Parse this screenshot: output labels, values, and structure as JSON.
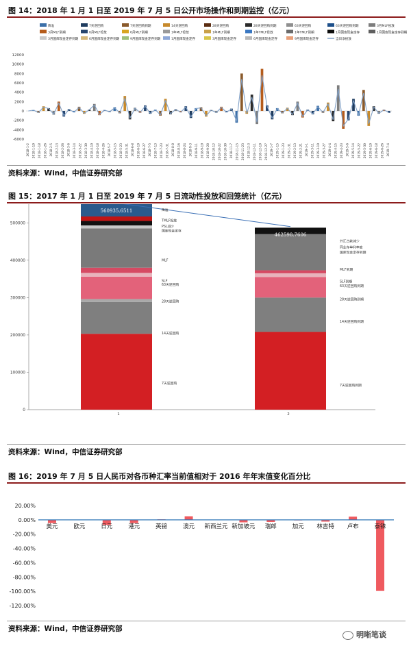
{
  "fig14": {
    "title": "图 14：2018 年 1 月 1 日至 2019 年 7 月 5 日公开市场操作和到期监控（亿元）",
    "source": "资料来源：Wind，中信证券研究部",
    "chart_data": {
      "type": "line",
      "legend_position": "top",
      "legend": [
        {
          "name": "降准",
          "color": "#3b6fa8"
        },
        {
          "name": "7天逆回购",
          "color": "#1f3c5f"
        },
        {
          "name": "7天逆回购到期",
          "color": "#8a5a2b"
        },
        {
          "name": "14天逆回购",
          "color": "#c78a2c"
        },
        {
          "name": "28天逆回购",
          "color": "#5b2c11"
        },
        {
          "name": "28天逆回购到期",
          "color": "#2a2a2a"
        },
        {
          "name": "63天逆回购",
          "color": "#8f8f8f"
        },
        {
          "name": "63天逆回购到期",
          "color": "#1d4f8a"
        },
        {
          "name": "3月MLF投放",
          "color": "#7d7d7d"
        },
        {
          "name": "3月MLF到期",
          "color": "#b55c1c"
        },
        {
          "name": "6月MLF投放",
          "color": "#26456e"
        },
        {
          "name": "6月MLF到期",
          "color": "#d9a520"
        },
        {
          "name": "1年MLF投放",
          "color": "#9a9a9a"
        },
        {
          "name": "1年MLF到期",
          "color": "#c9a14a"
        },
        {
          "name": "1年TMLF投放",
          "color": "#3a78c2"
        },
        {
          "name": "1年TMLF到期",
          "color": "#6b6b6b"
        },
        {
          "name": "1月国库现金定存",
          "color": "#0d0d0d"
        },
        {
          "name": "1月国库现金定存到期",
          "color": "#5f5f5f"
        },
        {
          "name": "3月国库现金定存到期",
          "color": "#c9c9c9"
        },
        {
          "name": "6月国库现金定存到期",
          "color": "#d5b77a"
        },
        {
          "name": "9月国库现金定存到期",
          "color": "#9fbf7a"
        },
        {
          "name": "1月国库现金定存",
          "color": "#8ea8d8"
        },
        {
          "name": "3月国库现金定存",
          "color": "#d7c64a"
        },
        {
          "name": "6月国库现金定存",
          "color": "#b8b8b8"
        },
        {
          "name": "9月国库现金定存",
          "color": "#e8a07a"
        },
        {
          "name": "当日净投放",
          "color": "#7f9fc6",
          "style": "line"
        }
      ],
      "ylim": [
        -6000,
        12000
      ],
      "yticks": [
        "12000",
        "10000",
        "8000",
        "6000",
        "4000",
        "2000",
        "0",
        "-2000",
        "-4000",
        "-6000"
      ],
      "xticks": [
        "2018-1-2",
        "2018-1-10",
        "2018-1-18",
        "2018-1-26",
        "2018-2-5",
        "2018-2-13",
        "2018-2-26",
        "2018-3-6",
        "2018-3-14",
        "2018-3-22",
        "2018-3-30",
        "2018-4-10",
        "2018-4-18",
        "2018-4-26",
        "2018-5-7",
        "2018-5-15",
        "2018-5-23",
        "2018-5-31",
        "2018-6-8",
        "2018-6-19",
        "2018-6-27",
        "2018-7-5",
        "2018-7-13",
        "2018-7-23",
        "2018-7-31",
        "2018-8-8",
        "2018-8-16",
        "2018-8-24",
        "2018-9-3",
        "2018-9-11",
        "2018-9-19",
        "2018-9-28",
        "2018-10-12",
        "2018-10-22",
        "2018-10-30",
        "2018-11-7",
        "2018-11-15",
        "2018-11-23",
        "2018-12-3",
        "2018-12-11",
        "2018-12-19",
        "2018-12-27",
        "2019-1-7",
        "2019-1-15",
        "2019-1-23",
        "2019-1-31",
        "2019-2-13",
        "2019-2-21",
        "2019-3-1",
        "2019-3-11",
        "2019-3-19",
        "2019-3-27",
        "2019-4-4",
        "2019-4-15",
        "2019-4-23",
        "2019-5-6",
        "2019-5-14",
        "2019-5-22",
        "2019-5-30",
        "2019-6-10",
        "2019-6-18",
        "2019-6-26",
        "2019-7-4"
      ],
      "net_injection": [
        0,
        200,
        -400,
        1000,
        600,
        -800,
        2000,
        -1200,
        400,
        -300,
        900,
        -600,
        300,
        1500,
        -900,
        200,
        -200,
        800,
        -500,
        3200,
        -1800,
        700,
        -400,
        1200,
        -600,
        300,
        -1000,
        2600,
        -700,
        400,
        -300,
        1000,
        -1500,
        600,
        800,
        -1200,
        200,
        -400,
        900,
        -300,
        500,
        -2500,
        8000,
        -600,
        3500,
        -2800,
        9000,
        1200,
        -1800,
        600,
        -500,
        700,
        -900,
        2000,
        -1400,
        300,
        -700,
        1100,
        -400,
        1800,
        -2200,
        5500,
        -3800,
        -2000,
        2600,
        -1000,
        4500,
        -3200,
        1000,
        -600,
        300,
        -400
      ]
    }
  },
  "fig15": {
    "title": "图 15：2017 年 1 月 1 日至 2019 年 7 月 5 日流动性投放和回笼统计（亿元）",
    "source": "资料来源：Wind，中信证券研究部",
    "chart_data": {
      "type": "bar",
      "stacked": true,
      "categories": [
        "1",
        "2"
      ],
      "ylim": [
        0,
        550000
      ],
      "yticks": [
        "500000",
        "400000",
        "300000",
        "200000",
        "100000",
        "0"
      ],
      "totals": [
        "560935.6511",
        "462598.7606"
      ],
      "bars": [
        {
          "category": "1",
          "segments": [
            {
              "value": 203000,
              "color": "#d31f23",
              "label": "7天逆回购"
            },
            {
              "value": 85000,
              "color": "#7f7f7f",
              "label": "14天逆回购"
            },
            {
              "value": 8000,
              "color": "#a9a9a9",
              "label": "28天逆回购"
            },
            {
              "value": 60000,
              "color": "#e3627a",
              "label": "63天逆回购"
            },
            {
              "value": 10000,
              "color": "#e8b3bc",
              "label": "SLF"
            },
            {
              "value": 14000,
              "color": "#d64a63",
              "label": ""
            },
            {
              "value": 105000,
              "color": "#7a7a7a",
              "label": "MLF"
            },
            {
              "value": 8000,
              "color": "#c9c9c9",
              "label": "国库现金定存"
            },
            {
              "value": 12000,
              "color": "#111111",
              "label": "TMLF投放"
            },
            {
              "value": 12000,
              "color": "#c01414",
              "label": ""
            },
            {
              "value": 43936,
              "color": "#2a5a8c",
              "label": "降准"
            }
          ]
        },
        {
          "category": "2",
          "segments": [
            {
              "value": 208000,
              "color": "#d31f23",
              "label": "7天逆回购到期"
            },
            {
              "value": 92000,
              "color": "#7f7f7f",
              "label": "14天逆回购到期"
            },
            {
              "value": 55000,
              "color": "#e3627a",
              "label": "28天逆回购到期"
            },
            {
              "value": 10000,
              "color": "#e8b3bc",
              "label": "63天逆回购到期"
            },
            {
              "value": 8000,
              "color": "#d64a63",
              "label": "SLF到期"
            },
            {
              "value": 98000,
              "color": "#7a7a7a",
              "label": "MLF到期"
            },
            {
              "value": 6000,
              "color": "#c9c9c9",
              "label": "国库现金定存到期"
            },
            {
              "value": 0,
              "color": "#111111",
              "label": "外汇占款减少"
            },
            {
              "value": -14401,
              "color": "#111111",
              "label": ""
            }
          ]
        }
      ],
      "labels_bar1": [
        {
          "text": "降准",
          "at": 532000
        },
        {
          "text": "TMLF投放",
          "at": 503000
        },
        {
          "text": "PSL减少",
          "at": 488000
        },
        {
          "text": "国库现金定存",
          "at": 476000
        },
        {
          "text": "MLF",
          "at": 397000
        },
        {
          "text": "SLF",
          "at": 342000
        },
        {
          "text": "63天逆回购",
          "at": 332000
        },
        {
          "text": "28天逆回购",
          "at": 287000
        },
        {
          "text": "14天逆回购",
          "at": 202000
        },
        {
          "text": "7天逆回购",
          "at": 68000
        }
      ],
      "labels_bar2": [
        {
          "text": "外汇占款减少",
          "at": 448000
        },
        {
          "text": "同业存单利率变",
          "at": 432000
        },
        {
          "text": "国库现金定存到期",
          "at": 418000
        },
        {
          "text": "MLF到期",
          "at": 372000
        },
        {
          "text": "SLF到期",
          "at": 340000
        },
        {
          "text": "63天逆回购到期",
          "at": 328000
        },
        {
          "text": "28天逆回购到期",
          "at": 292000
        },
        {
          "text": "14天逆回购到期",
          "at": 233000
        },
        {
          "text": "7天逆回购到期",
          "at": 62000
        }
      ]
    }
  },
  "fig16": {
    "title": "图 16：2019 年 7 月 5 日人民币对各币种汇率当前值相对于 2016 年年末值变化百分比",
    "source": "资料来源：Wind，中信证券研究部",
    "chart_data": {
      "type": "bar",
      "categories": [
        "美元",
        "欧元",
        "日元",
        "港元",
        "英镑",
        "澳元",
        "新西兰元",
        "新加坡元",
        "瑞郎",
        "加元",
        "林吉特",
        "卢布",
        "泰铢"
      ],
      "values": [
        -4.5,
        0,
        -7.0,
        -4.5,
        0.8,
        5.0,
        0.3,
        -3.5,
        -3.0,
        -0.8,
        -2.5,
        4.5,
        -99.5
      ],
      "ylim": [
        -120,
        20
      ],
      "yticks": [
        "20.00%",
        "0.00%",
        "-20.00%",
        "-40.00%",
        "-60.00%",
        "-80.00%",
        "-100.00%",
        "-120.00%"
      ],
      "bar_color": "#ef5a5f",
      "axis_color": "#2e75b6"
    }
  },
  "watermark": {
    "text": "明晰笔谈"
  }
}
